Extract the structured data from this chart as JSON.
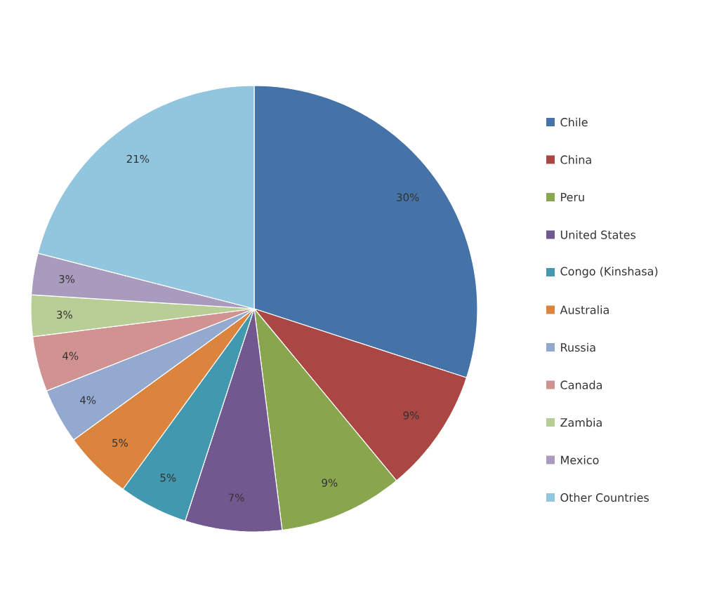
{
  "chart_data": {
    "type": "pie",
    "categories": [
      "Chile",
      "China",
      "Peru",
      "United States",
      "Congo (Kinshasa)",
      "Australia",
      "Russia",
      "Canada",
      "Zambia",
      "Mexico",
      "Other Countries"
    ],
    "values": [
      30,
      9,
      9,
      7,
      5,
      5,
      4,
      4,
      3,
      3,
      21
    ],
    "value_labels": [
      "30%",
      "9%",
      "9%",
      "7%",
      "5%",
      "5%",
      "4%",
      "4%",
      "3%",
      "3%",
      "21%"
    ],
    "colors": [
      "#4572a7",
      "#aa4643",
      "#89a54e",
      "#71588f",
      "#4198af",
      "#db843d",
      "#93a9cf",
      "#d19392",
      "#b9cd96",
      "#a99bbd",
      "#92c5de"
    ],
    "legend": "right"
  }
}
